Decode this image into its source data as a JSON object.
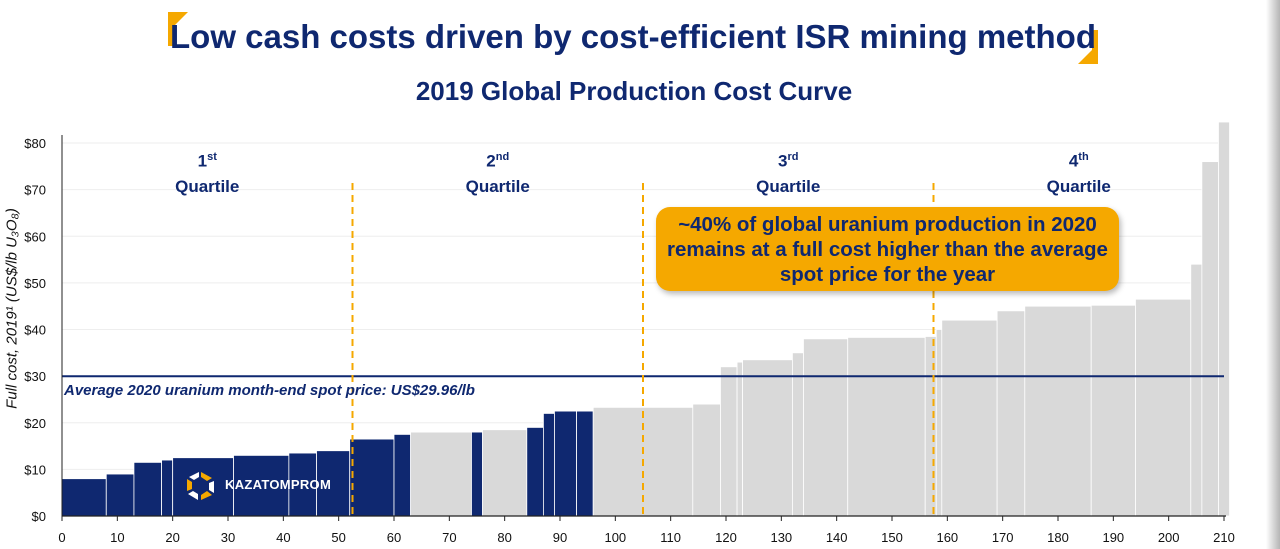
{
  "slide_title": "Low cash costs driven by cost-efficient ISR mining method",
  "chart_title": "2019 Global Production Cost Curve",
  "callout": "~40% of global uranium production in 2020 remains at a full cost higher than the average spot price for the year",
  "spot_price_label": "Average 2020 uranium month-end spot price: US$29.96/lb",
  "ylabel": "Full cost, 2019¹ (US$/lb U₃O₈)",
  "logo_text": "KAZATOMPROM",
  "quartiles": [
    {
      "num": "1",
      "sup": "st",
      "word": "Quartile"
    },
    {
      "num": "2",
      "sup": "nd",
      "word": "Quartile"
    },
    {
      "num": "3",
      "sup": "rd",
      "word": "Quartile"
    },
    {
      "num": "4",
      "sup": "th",
      "word": "Quartile"
    }
  ],
  "colors": {
    "navy": "#0f2870",
    "bar_kazatomprom": "#0f2870",
    "bar_other": "#d9d9d9",
    "accent": "#f5a800"
  },
  "chart_data": {
    "type": "bar",
    "title": "2019 Global Production Cost Curve",
    "ylabel": "Full cost, 2019¹ (US$/lb U₃O₈)",
    "xlim": [
      0,
      210
    ],
    "ylim": [
      0,
      85
    ],
    "x_ticks": [
      0,
      10,
      20,
      30,
      40,
      50,
      60,
      70,
      80,
      90,
      100,
      110,
      120,
      130,
      140,
      150,
      160,
      170,
      180,
      190,
      200,
      210
    ],
    "y_ticks": [
      0,
      10,
      20,
      30,
      40,
      50,
      60,
      70,
      80
    ],
    "y_tick_labels": [
      "$0",
      "$10",
      "$20",
      "$30",
      "$40",
      "$50",
      "$60",
      "$70",
      "$80"
    ],
    "spot_price": 29.96,
    "quartile_boundaries": [
      52.5,
      105,
      157.5
    ],
    "bars": [
      {
        "start": 0,
        "end": 8,
        "cost": 8,
        "k": true
      },
      {
        "start": 8,
        "end": 13,
        "cost": 9,
        "k": true
      },
      {
        "start": 13,
        "end": 18,
        "cost": 11.5,
        "k": true
      },
      {
        "start": 18,
        "end": 20,
        "cost": 12,
        "k": true
      },
      {
        "start": 20,
        "end": 31,
        "cost": 12.5,
        "k": true
      },
      {
        "start": 31,
        "end": 41,
        "cost": 13,
        "k": true
      },
      {
        "start": 41,
        "end": 46,
        "cost": 13.5,
        "k": true
      },
      {
        "start": 46,
        "end": 52,
        "cost": 14,
        "k": true
      },
      {
        "start": 52,
        "end": 60,
        "cost": 16.5,
        "k": true
      },
      {
        "start": 60,
        "end": 63,
        "cost": 17.5,
        "k": true
      },
      {
        "start": 63,
        "end": 74,
        "cost": 18,
        "k": false
      },
      {
        "start": 74,
        "end": 76,
        "cost": 18,
        "k": true
      },
      {
        "start": 76,
        "end": 84,
        "cost": 18.5,
        "k": false
      },
      {
        "start": 84,
        "end": 87,
        "cost": 19,
        "k": true
      },
      {
        "start": 87,
        "end": 89,
        "cost": 22,
        "k": true
      },
      {
        "start": 89,
        "end": 93,
        "cost": 22.5,
        "k": true
      },
      {
        "start": 93,
        "end": 96,
        "cost": 22.5,
        "k": true
      },
      {
        "start": 96,
        "end": 114,
        "cost": 23.3,
        "k": false
      },
      {
        "start": 114,
        "end": 119,
        "cost": 24,
        "k": false
      },
      {
        "start": 119,
        "end": 122,
        "cost": 32,
        "k": false
      },
      {
        "start": 122,
        "end": 123,
        "cost": 33,
        "k": false
      },
      {
        "start": 123,
        "end": 132,
        "cost": 33.5,
        "k": false
      },
      {
        "start": 132,
        "end": 134,
        "cost": 35,
        "k": false
      },
      {
        "start": 134,
        "end": 142,
        "cost": 38,
        "k": false
      },
      {
        "start": 142,
        "end": 156,
        "cost": 38.3,
        "k": false
      },
      {
        "start": 156,
        "end": 158,
        "cost": 38.5,
        "k": false
      },
      {
        "start": 158,
        "end": 159,
        "cost": 40,
        "k": false
      },
      {
        "start": 159,
        "end": 169,
        "cost": 42,
        "k": false
      },
      {
        "start": 169,
        "end": 174,
        "cost": 44,
        "k": false
      },
      {
        "start": 174,
        "end": 186,
        "cost": 45,
        "k": false
      },
      {
        "start": 186,
        "end": 194,
        "cost": 45.2,
        "k": false
      },
      {
        "start": 194,
        "end": 204,
        "cost": 46.5,
        "k": false
      },
      {
        "start": 204,
        "end": 206,
        "cost": 54,
        "k": false
      },
      {
        "start": 206,
        "end": 209,
        "cost": 76,
        "k": false
      },
      {
        "start": 209,
        "end": 211,
        "cost": 84.5,
        "k": false
      }
    ]
  }
}
